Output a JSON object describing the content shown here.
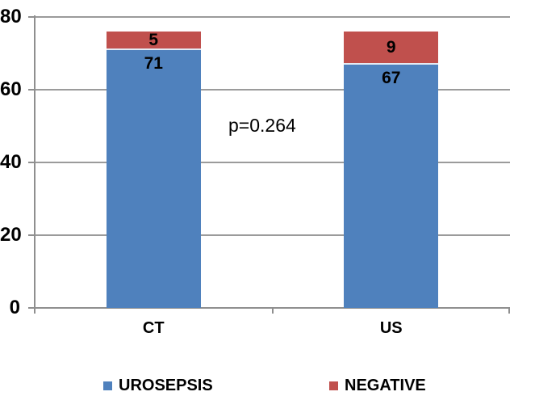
{
  "chart_data": {
    "type": "bar",
    "stacked": true,
    "categories": [
      "CT",
      "US"
    ],
    "series": [
      {
        "name": "UROSEPSIS",
        "color": "#4F81BD",
        "values": [
          71,
          67
        ]
      },
      {
        "name": "NEGATIVE",
        "color": "#C0504D",
        "values": [
          5,
          9
        ]
      }
    ],
    "ylim": [
      0,
      80
    ],
    "yticks": [
      "0",
      "20",
      "40",
      "60",
      "80"
    ],
    "grid": true,
    "legend_position": "bottom",
    "annotation": "p=0.264"
  },
  "colors": {
    "gridline": "#9b9b9b",
    "axis": "#8f8f8f",
    "background": "#ffffff",
    "text": "#000000"
  }
}
